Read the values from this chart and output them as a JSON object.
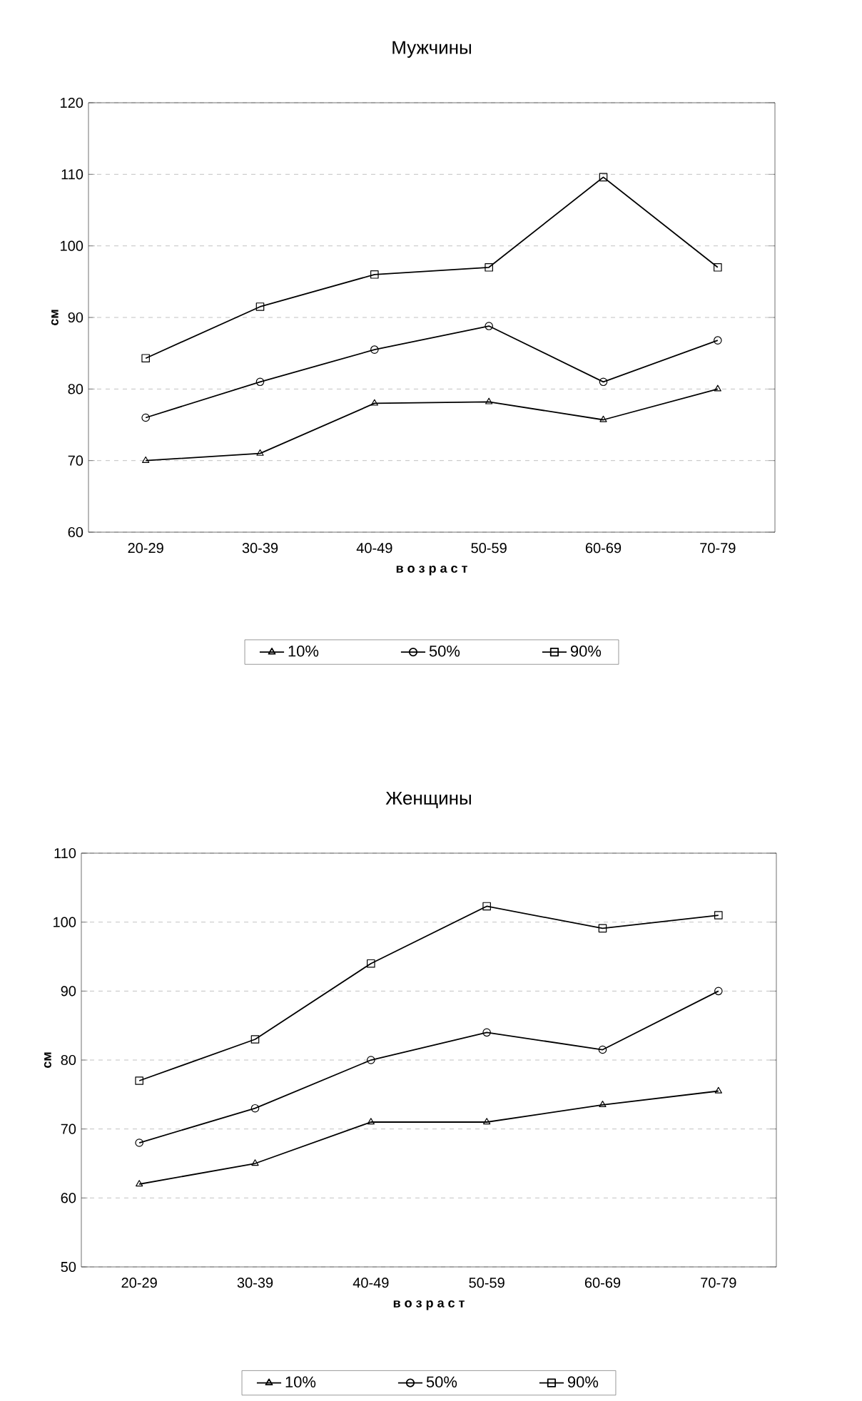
{
  "chart_data": [
    {
      "type": "line",
      "title": "Мужчины",
      "xlabel": "в о з р а с т",
      "ylabel": "см",
      "categories": [
        "20-29",
        "30-39",
        "40-49",
        "50-59",
        "60-69",
        "70-79"
      ],
      "series": [
        {
          "name": "10%",
          "color": "#000000",
          "marker": "triangle",
          "values": [
            70,
            71,
            78,
            78.2,
            75.7,
            80
          ]
        },
        {
          "name": "50%",
          "color": "#000000",
          "marker": "circle",
          "values": [
            76,
            81,
            85.5,
            88.8,
            81,
            86.8
          ]
        },
        {
          "name": "90%",
          "color": "#000000",
          "marker": "square",
          "values": [
            84.3,
            91.5,
            96,
            97,
            109.6,
            97
          ]
        }
      ],
      "ylim": [
        60,
        120
      ],
      "yticks": [
        60,
        70,
        80,
        90,
        100,
        110,
        120
      ],
      "grid": "y",
      "legend": "bottom",
      "line_style": "solid"
    },
    {
      "type": "line",
      "title": "Женщины",
      "xlabel": "в о з р а с т",
      "ylabel": "см",
      "categories": [
        "20-29",
        "30-39",
        "40-49",
        "50-59",
        "60-69",
        "70-79"
      ],
      "series": [
        {
          "name": "10%",
          "color": "#000000",
          "marker": "triangle",
          "values": [
            62,
            65,
            71,
            71,
            73.5,
            75.5
          ]
        },
        {
          "name": "50%",
          "color": "#000000",
          "marker": "circle",
          "values": [
            68,
            73,
            80,
            84,
            81.5,
            90
          ]
        },
        {
          "name": "90%",
          "color": "#000000",
          "marker": "square",
          "values": [
            77,
            83,
            94,
            102.3,
            99.1,
            101
          ]
        }
      ],
      "ylim": [
        50,
        110
      ],
      "yticks": [
        50,
        60,
        70,
        80,
        90,
        100,
        110
      ],
      "grid": "y",
      "legend": "bottom",
      "line_style": "solid"
    }
  ]
}
